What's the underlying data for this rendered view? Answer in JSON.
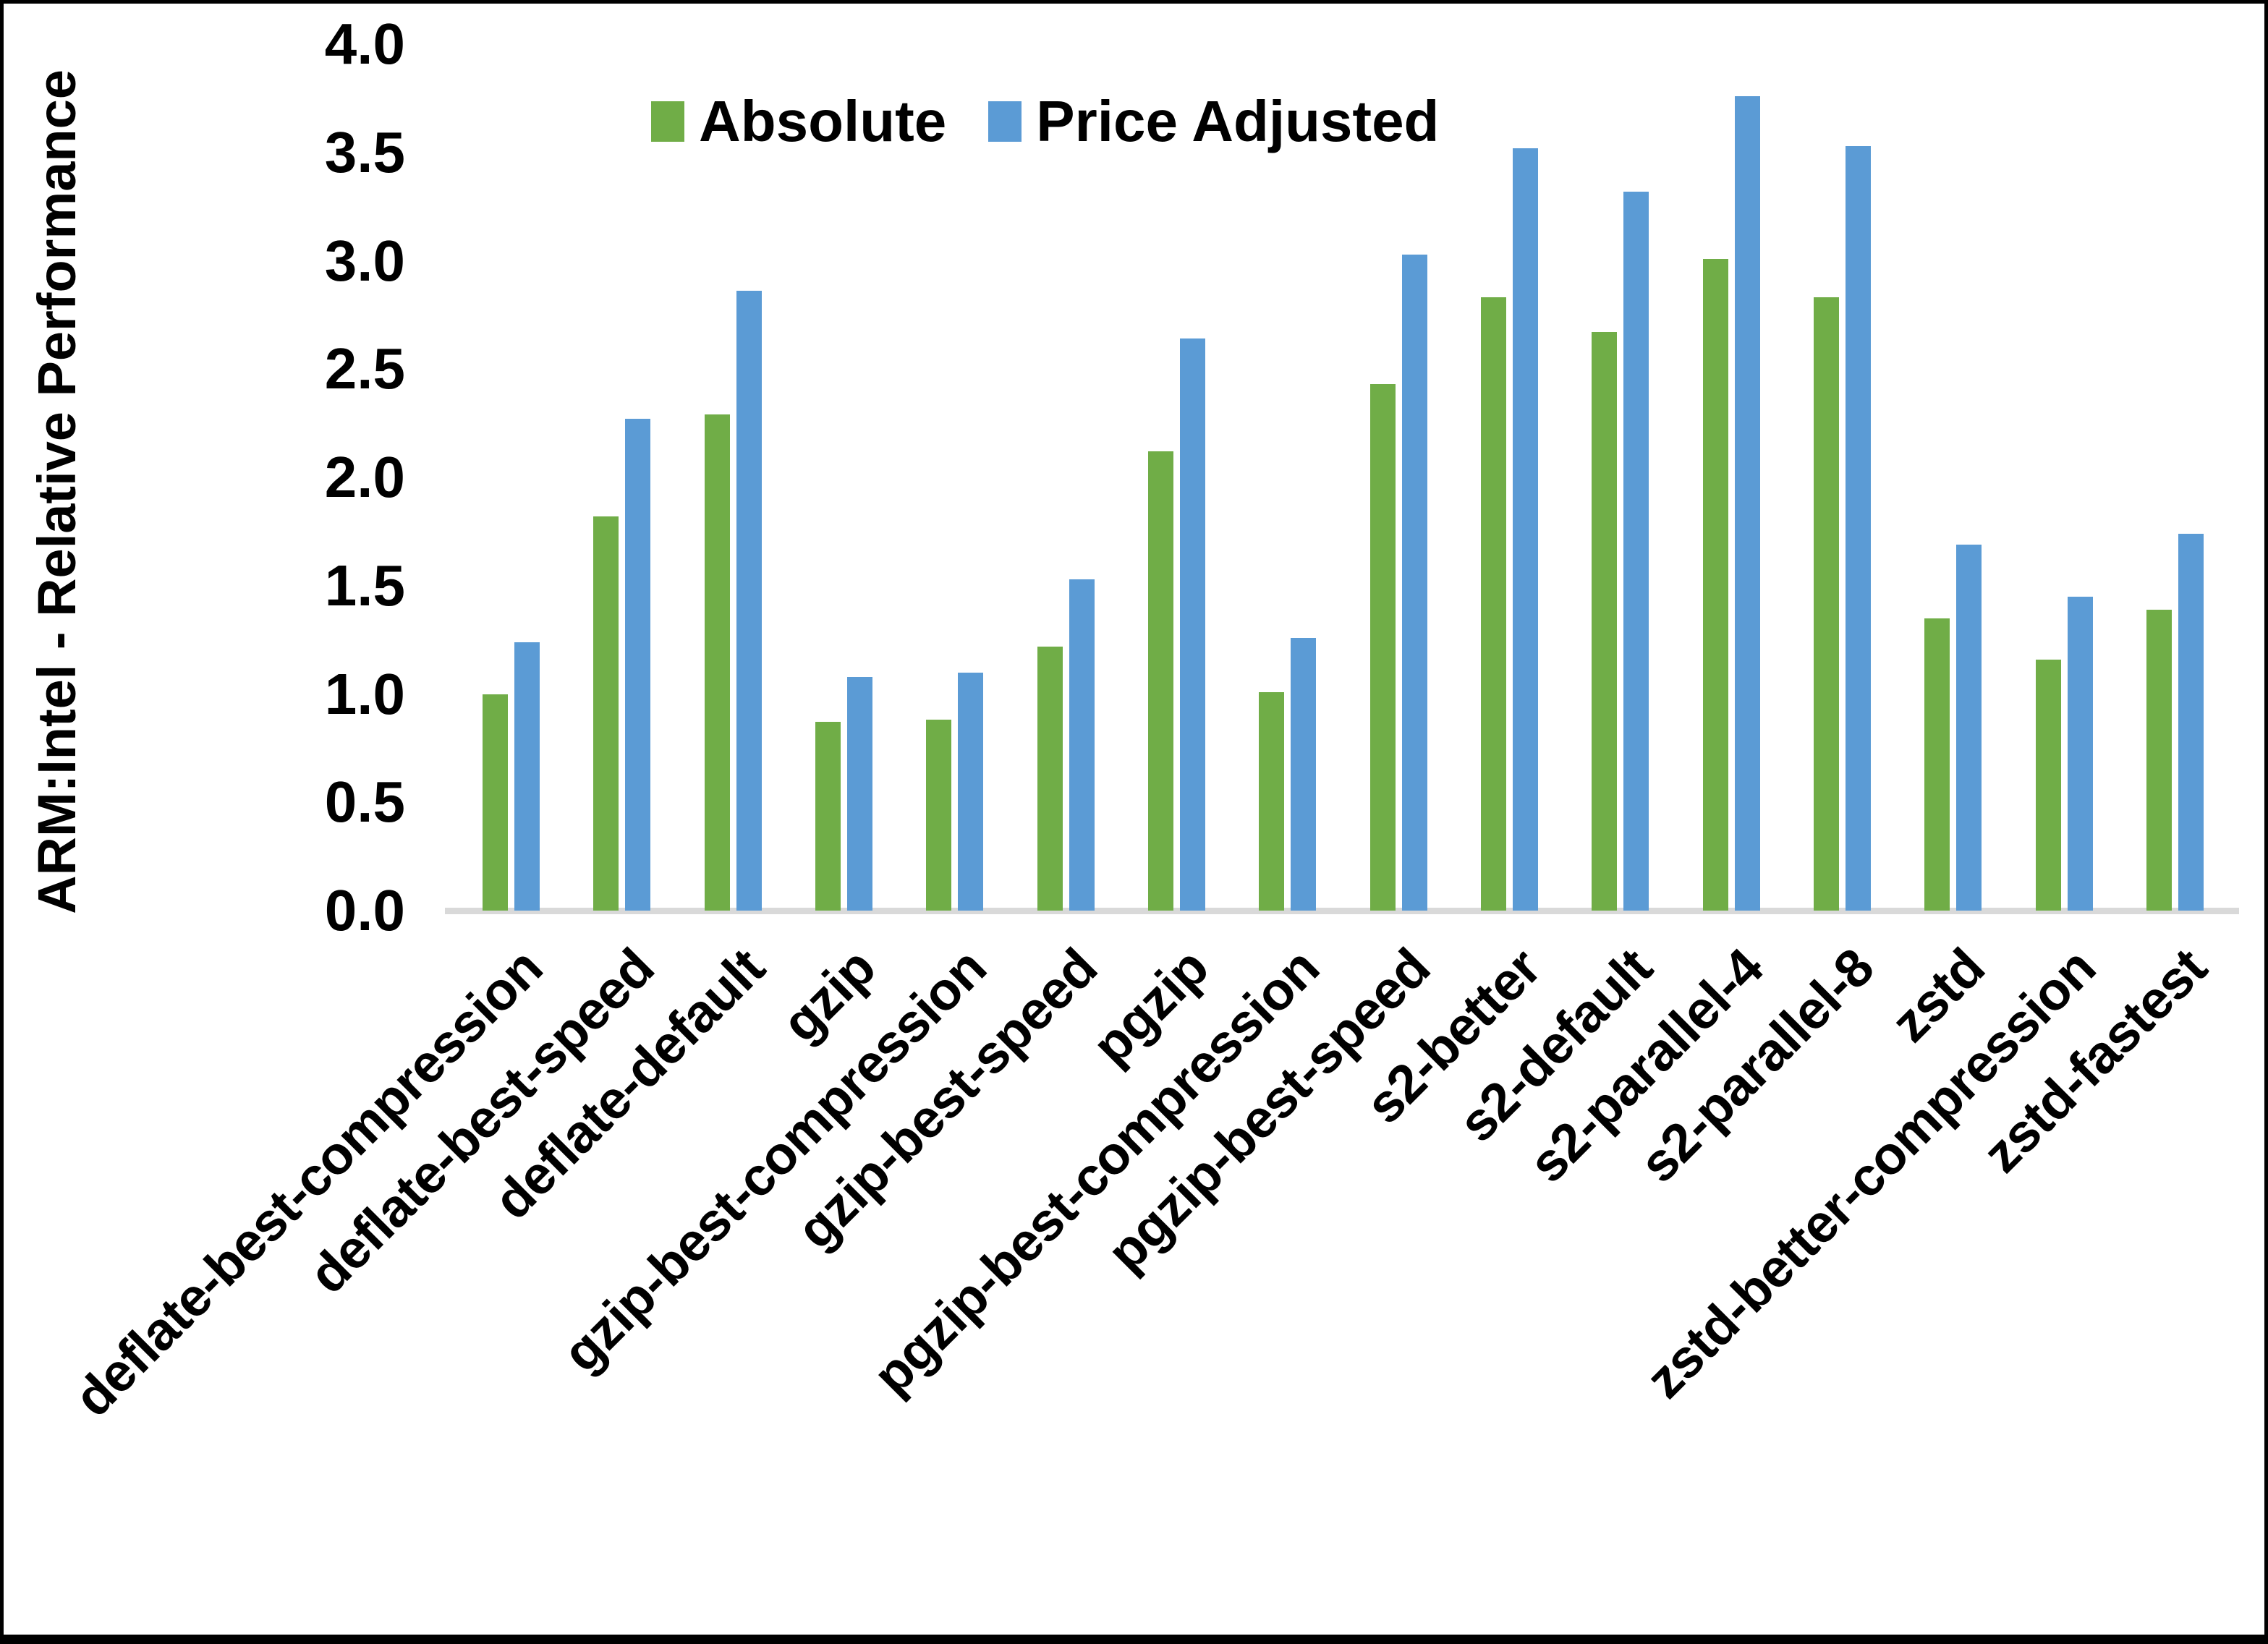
{
  "chart_data": {
    "type": "bar",
    "title": "",
    "xlabel": "",
    "ylabel": "ARM:Intel - Relative Performance",
    "ylim": [
      0.0,
      4.0
    ],
    "ytick_step": 0.5,
    "ytick_labels": [
      "0.0",
      "0.5",
      "1.0",
      "1.5",
      "2.0",
      "2.5",
      "3.0",
      "3.5",
      "4.0"
    ],
    "grid": false,
    "legend_position": "top-center",
    "background": "#FFFFFF",
    "axis_line_color": "#D9D9D9",
    "text_color": "#000000",
    "categories": [
      "deflate-best-compression",
      "deflate-best-speed",
      "deflate-default",
      "gzip",
      "gzip-best-compression",
      "gzip-best-speed",
      "pgzip",
      "pgzip-best-compression",
      "pgzip-best-speed",
      "s2-better",
      "s2-default",
      "s2-parallel-4",
      "s2-parallel-8",
      "zstd",
      "zstd-better-compression",
      "zstd-fastest"
    ],
    "series": [
      {
        "name": "Absolute",
        "color": "#70AD47",
        "values": [
          1.0,
          1.82,
          2.29,
          0.87,
          0.88,
          1.22,
          2.12,
          1.01,
          2.43,
          2.83,
          2.67,
          3.01,
          2.83,
          1.35,
          1.16,
          1.39
        ]
      },
      {
        "name": "Price Adjusted",
        "color": "#5B9BD5",
        "values": [
          1.24,
          2.27,
          2.86,
          1.08,
          1.1,
          1.53,
          2.64,
          1.26,
          3.03,
          3.52,
          3.32,
          3.76,
          3.53,
          1.69,
          1.45,
          1.74
        ]
      }
    ]
  }
}
